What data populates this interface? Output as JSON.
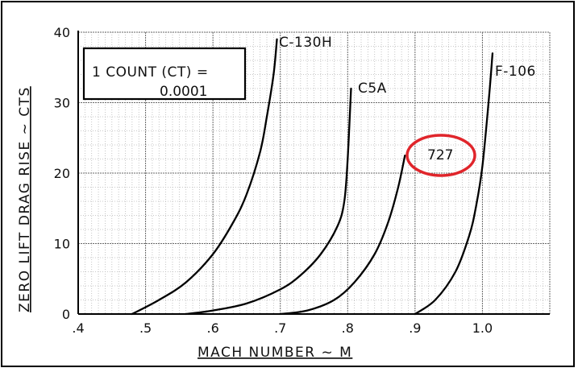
{
  "chart_data": {
    "type": "line",
    "xlabel": "MACH NUMBER ~ M",
    "ylabel": "ZERO LIFT DRAG RISE ~ CTS",
    "xlim": [
      0.4,
      1.1
    ],
    "ylim": [
      0,
      40
    ],
    "x_ticks": [
      ".4",
      ".5",
      ".6",
      ".7",
      ".8",
      ".9",
      "1.0"
    ],
    "y_ticks": [
      "0",
      "10",
      "20",
      "30",
      "40"
    ],
    "grid": true,
    "annotation": {
      "line1": "1 COUNT (CT) =",
      "line2": "0.0001"
    },
    "series": [
      {
        "name": "C-130H",
        "x": [
          0.48,
          0.52,
          0.56,
          0.6,
          0.63,
          0.65,
          0.67,
          0.68,
          0.69,
          0.695
        ],
        "y": [
          0,
          2,
          4.5,
          8.5,
          13,
          17,
          23,
          28,
          34,
          39
        ]
      },
      {
        "name": "C5A",
        "x": [
          0.56,
          0.6,
          0.65,
          0.7,
          0.73,
          0.76,
          0.785,
          0.795,
          0.8,
          0.805
        ],
        "y": [
          0,
          0.5,
          1.5,
          3.5,
          5.5,
          8.5,
          12.5,
          16,
          22,
          32
        ]
      },
      {
        "name": "727",
        "x": [
          0.7,
          0.74,
          0.78,
          0.81,
          0.84,
          0.86,
          0.875,
          0.885
        ],
        "y": [
          0,
          0.5,
          2,
          4.5,
          8.5,
          13,
          18,
          22.5
        ]
      },
      {
        "name": "F-106",
        "x": [
          0.9,
          0.93,
          0.96,
          0.98,
          0.99,
          1.0,
          1.01,
          1.015
        ],
        "y": [
          0,
          2,
          6,
          11,
          15,
          21,
          31,
          37
        ]
      }
    ]
  },
  "highlight": {
    "label": "727",
    "color": "#e0252b"
  }
}
